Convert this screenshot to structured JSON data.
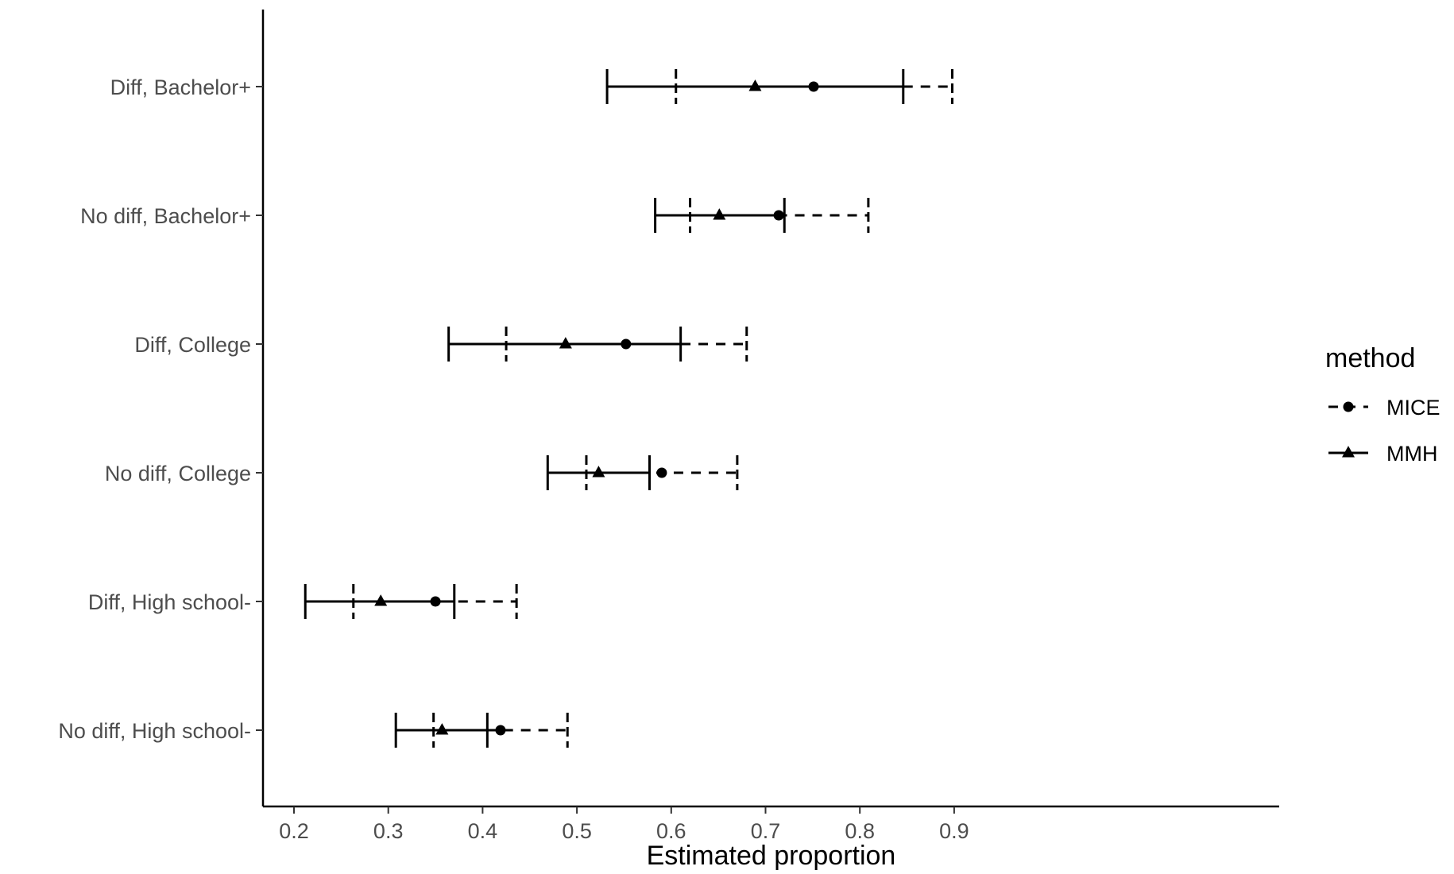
{
  "chart_data": {
    "type": "errorbar",
    "xlabel": "Estimated proportion",
    "ylabel": "",
    "xlim": [
      0.18,
      0.93
    ],
    "x_ticks": [
      0.2,
      0.3,
      0.4,
      0.5,
      0.6,
      0.7,
      0.8,
      0.9
    ],
    "x_tick_labels": [
      "0.2",
      "0.3",
      "0.4",
      "0.5",
      "0.6",
      "0.7",
      "0.8",
      "0.9"
    ],
    "categories": [
      "Diff, Bachelor+",
      "No diff, Bachelor+",
      "Diff, College",
      "No diff, College",
      "Diff, High school-",
      "No diff, High school-"
    ],
    "grid": false,
    "legend_position": "right",
    "legend": {
      "title": "method",
      "entries": [
        "MICE",
        "MMH"
      ]
    },
    "series": [
      {
        "name": "MICE",
        "marker": "circle",
        "linetype": "dashed",
        "estimates": [
          0.751,
          0.714,
          0.552,
          0.59,
          0.35,
          0.419
        ],
        "lower": [
          0.605,
          0.62,
          0.425,
          0.51,
          0.263,
          0.348
        ],
        "upper": [
          0.898,
          0.809,
          0.68,
          0.67,
          0.436,
          0.49
        ]
      },
      {
        "name": "MMH",
        "marker": "triangle",
        "linetype": "solid",
        "estimates": [
          0.689,
          0.651,
          0.488,
          0.523,
          0.292,
          0.357
        ],
        "lower": [
          0.532,
          0.583,
          0.364,
          0.469,
          0.212,
          0.308
        ],
        "upper": [
          0.846,
          0.72,
          0.61,
          0.577,
          0.37,
          0.405
        ]
      }
    ]
  }
}
